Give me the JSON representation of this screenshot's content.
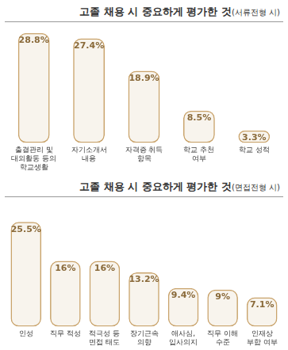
{
  "chart_data": [
    {
      "type": "bar",
      "title": "고졸 채용 시 중요하게 평가한 것(서류전형 시)",
      "categories": [
        "출결관리 및 대외활동 등의 학교생활",
        "자기소개서 내용",
        "자격증 취득 항목",
        "학교 추천 여부",
        "학교 성적"
      ],
      "values": [
        28.8,
        27.4,
        18.9,
        8.5,
        3.3
      ],
      "value_labels": [
        "28.8%",
        "27.4%",
        "18.9%",
        "8.5%",
        "3.3%"
      ],
      "color": "#c9a36b",
      "data_labels": true,
      "tick_labels": "x",
      "grid": false
    },
    {
      "type": "bar",
      "title": "고졸 채용 시 중요하게 평가한 것(면접전형 시)",
      "categories": [
        "인성",
        "직무 적성",
        "적극성 등 면접 태도",
        "장기근속 의향",
        "애사심, 입사의지",
        "직무 이해 수준",
        "인재상 부합 여부"
      ],
      "values": [
        25.5,
        16,
        16,
        13.2,
        9.4,
        9,
        7.1
      ],
      "value_labels": [
        "25.5%",
        "16%",
        "16%",
        "13.2%",
        "9.4%",
        "9%",
        "7.1%"
      ],
      "color": "#c9a36b",
      "data_labels": true,
      "tick_labels": "x",
      "grid": false
    }
  ]
}
